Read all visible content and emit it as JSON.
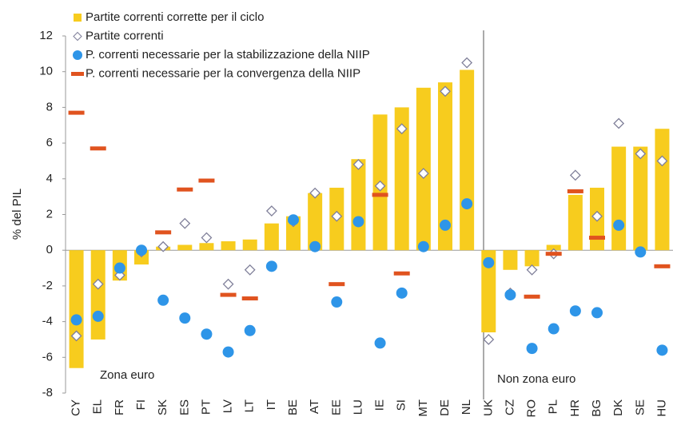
{
  "chart_data": {
    "type": "bar",
    "y_label": "% del PIL",
    "annotations": [
      "Zona euro",
      "Non zona euro"
    ],
    "categories": [
      "CY",
      "EL",
      "FR",
      "FI",
      "SK",
      "ES",
      "PT",
      "LV",
      "LT",
      "IT",
      "BE",
      "AT",
      "EE",
      "LU",
      "IE",
      "SI",
      "MT",
      "DE",
      "NL",
      "UK",
      "CZ",
      "RO",
      "PL",
      "HR",
      "BG",
      "DK",
      "SE",
      "HU"
    ],
    "ylim": [
      -8,
      12
    ],
    "yticks": [
      -8,
      -6,
      -4,
      -2,
      0,
      2,
      4,
      6,
      8,
      10,
      12
    ],
    "series": [
      {
        "name": "Partite correnti corrette per il ciclo",
        "marker": "bar",
        "color": "#F7CC1E",
        "values": [
          -6.6,
          -5.0,
          -1.7,
          -0.8,
          0.2,
          0.3,
          0.4,
          0.5,
          0.6,
          1.5,
          1.9,
          3.2,
          3.5,
          5.1,
          7.6,
          8.0,
          9.1,
          9.4,
          10.1,
          -4.6,
          -1.1,
          -0.9,
          0.3,
          3.1,
          3.5,
          5.8,
          5.8,
          6.8
        ]
      },
      {
        "name": "Partite correnti",
        "marker": "diamond",
        "color": "#7F7F99",
        "values": [
          -4.8,
          -1.9,
          -1.4,
          -0.1,
          0.2,
          1.5,
          0.7,
          -1.9,
          -1.1,
          2.2,
          1.6,
          3.2,
          1.9,
          4.8,
          3.6,
          6.8,
          4.3,
          8.9,
          10.5,
          -5.0,
          -2.4,
          -1.1,
          -0.2,
          4.2,
          1.9,
          7.1,
          5.4,
          5.0
        ]
      },
      {
        "name": "P. correnti necessarie per la stabilizzazione della NIIP",
        "marker": "circle",
        "color": "#2E95E8",
        "values": [
          -3.9,
          -3.7,
          -1.0,
          0.0,
          -2.8,
          -3.8,
          -4.7,
          -5.7,
          -4.5,
          -0.9,
          1.7,
          0.2,
          -2.9,
          1.6,
          -5.2,
          -2.4,
          0.2,
          1.4,
          2.6,
          -0.7,
          -2.5,
          -5.5,
          -4.4,
          -3.4,
          -3.5,
          1.4,
          -0.1,
          -5.6
        ]
      },
      {
        "name": "P. correnti necessarie per la convergenza della NIIP",
        "marker": "dash",
        "color": "#E0531F",
        "values": [
          7.7,
          5.7,
          null,
          null,
          1.0,
          3.4,
          3.9,
          -2.5,
          -2.7,
          null,
          null,
          null,
          -1.9,
          null,
          3.1,
          -1.3,
          null,
          null,
          null,
          null,
          null,
          -2.6,
          -0.2,
          3.3,
          0.7,
          null,
          null,
          -0.9
        ]
      }
    ]
  }
}
